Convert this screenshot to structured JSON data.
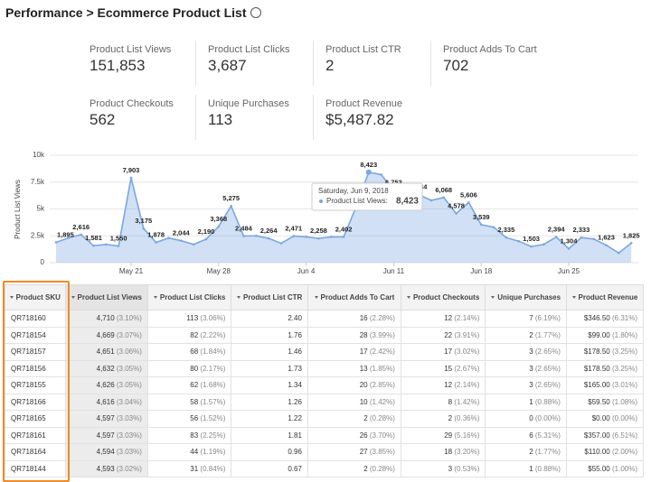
{
  "header": {
    "title": "Performance > Ecommerce Product List"
  },
  "metrics": [
    {
      "label": "Product List Views",
      "value": "151,853"
    },
    {
      "label": "Product List Clicks",
      "value": "3,687"
    },
    {
      "label": "Product List CTR",
      "value": "2"
    },
    {
      "label": "Product Adds To Cart",
      "value": "702"
    },
    {
      "label": "Product Checkouts",
      "value": "562"
    },
    {
      "label": "Unique Purchases",
      "value": "113"
    },
    {
      "label": "Product Revenue",
      "value": "$5,487.82"
    }
  ],
  "chart_data": {
    "type": "area",
    "y_label": "Product List Views",
    "color": "#7aa7e0",
    "x": [
      "May 15",
      "May 16",
      "May 17",
      "May 18",
      "May 19",
      "May 20",
      "May 21",
      "May 22",
      "May 23",
      "May 24",
      "May 25",
      "May 26",
      "May 27",
      "May 28",
      "May 29",
      "May 30",
      "May 31",
      "Jun 1",
      "Jun 2",
      "Jun 3",
      "Jun 4",
      "Jun 5",
      "Jun 6",
      "Jun 7",
      "Jun 8",
      "Jun 9",
      "Jun 10",
      "Jun 11",
      "Jun 12",
      "Jun 13",
      "Jun 14",
      "Jun 15",
      "Jun 16",
      "Jun 17",
      "Jun 18",
      "Jun 19",
      "Jun 20",
      "Jun 21",
      "Jun 22",
      "Jun 23",
      "Jun 24",
      "Jun 25",
      "Jun 26",
      "Jun 27",
      "Jun 28",
      "Jun 29",
      "Jun 30"
    ],
    "values": [
      1895,
      2300,
      2616,
      1581,
      1700,
      1550,
      7903,
      3175,
      1878,
      2300,
      2044,
      1700,
      2190,
      3368,
      5275,
      2484,
      2500,
      2264,
      1800,
      2471,
      2400,
      2258,
      2400,
      2402,
      5200,
      8423,
      8200,
      6753,
      6500,
      6334,
      5800,
      6068,
      4578,
      5606,
      3539,
      3300,
      2335,
      2000,
      1503,
      1700,
      2394,
      1304,
      2333,
      2200,
      1623,
      900,
      1825
    ],
    "value_labels": [
      "1,895",
      null,
      "2,616",
      "1,581",
      null,
      "1,550",
      "7,903",
      "3,175",
      "1,878",
      null,
      "2,044",
      null,
      "2,190",
      "3,368",
      "5,275",
      "2,484",
      null,
      "2,264",
      null,
      "2,471",
      null,
      "2,258",
      null,
      "2,402",
      null,
      "8,423",
      null,
      "6,753",
      null,
      "6,334",
      null,
      "6,068",
      "4,578",
      "5,606",
      "3,539",
      null,
      "2,335",
      null,
      "1,503",
      null,
      "2,394",
      "1,304",
      "2,333",
      null,
      "1,623",
      null,
      "1,825"
    ],
    "xticks": [
      "May 21",
      "May 28",
      "Jun 4",
      "Jun 11",
      "Jun 18",
      "Jun 25"
    ],
    "ylim": [
      0,
      10000
    ],
    "yticks": [
      0,
      {
        "value": 2500,
        "label": "2.5k"
      },
      {
        "value": 5000,
        "label": "5k"
      },
      {
        "value": 7500,
        "label": "7.5k"
      },
      {
        "value": 10000,
        "label": "10k"
      }
    ],
    "grid": true,
    "tooltip": {
      "title": "Saturday, Jun 9, 2018",
      "label": "Product List Views:",
      "index": 25
    }
  },
  "table": {
    "columns": [
      "Product SKU",
      "Product List Views",
      "Product List Clicks",
      "Product List CTR",
      "Product Adds To Cart",
      "Product Checkouts",
      "Unique Purchases",
      "Product Revenue"
    ],
    "rows": [
      [
        "QR718160",
        [
          "4,710",
          "(3.10%)"
        ],
        [
          "113",
          "(3.06%)"
        ],
        [
          "2.40"
        ],
        [
          "16",
          "(2.28%)"
        ],
        [
          "12",
          "(2.14%)"
        ],
        [
          "7",
          "(6.19%)"
        ],
        [
          "$346.50",
          "(6.31%)"
        ]
      ],
      [
        "QR718154",
        [
          "4,669",
          "(3.07%)"
        ],
        [
          "82",
          "(2.22%)"
        ],
        [
          "1.76"
        ],
        [
          "28",
          "(3.99%)"
        ],
        [
          "22",
          "(3.91%)"
        ],
        [
          "2",
          "(1.77%)"
        ],
        [
          "$99.00",
          "(1.80%)"
        ]
      ],
      [
        "QR718157",
        [
          "4,651",
          "(3.06%)"
        ],
        [
          "68",
          "(1.84%)"
        ],
        [
          "1.46"
        ],
        [
          "17",
          "(2.42%)"
        ],
        [
          "17",
          "(3.02%)"
        ],
        [
          "3",
          "(2.65%)"
        ],
        [
          "$178.50",
          "(3.25%)"
        ]
      ],
      [
        "QR718156",
        [
          "4,632",
          "(3.05%)"
        ],
        [
          "80",
          "(2.17%)"
        ],
        [
          "1.73"
        ],
        [
          "13",
          "(1.85%)"
        ],
        [
          "15",
          "(2.67%)"
        ],
        [
          "3",
          "(2.65%)"
        ],
        [
          "$178.50",
          "(3.25%)"
        ]
      ],
      [
        "QR718155",
        [
          "4,626",
          "(3.05%)"
        ],
        [
          "62",
          "(1.68%)"
        ],
        [
          "1.34"
        ],
        [
          "20",
          "(2.85%)"
        ],
        [
          "12",
          "(2.14%)"
        ],
        [
          "3",
          "(2.65%)"
        ],
        [
          "$165.00",
          "(3.01%)"
        ]
      ],
      [
        "QR718166",
        [
          "4,616",
          "(3.04%)"
        ],
        [
          "58",
          "(1.57%)"
        ],
        [
          "1.26"
        ],
        [
          "10",
          "(1.42%)"
        ],
        [
          "8",
          "(1.42%)"
        ],
        [
          "1",
          "(0.88%)"
        ],
        [
          "$59.50",
          "(1.08%)"
        ]
      ],
      [
        "QR718165",
        [
          "4,597",
          "(3.03%)"
        ],
        [
          "56",
          "(1.52%)"
        ],
        [
          "1.22"
        ],
        [
          "2",
          "(0.28%)"
        ],
        [
          "2",
          "(0.36%)"
        ],
        [
          "0",
          "(0.00%)"
        ],
        [
          "$0.00",
          "(0.00%)"
        ]
      ],
      [
        "QR718161",
        [
          "4,597",
          "(3.03%)"
        ],
        [
          "83",
          "(2.25%)"
        ],
        [
          "1.81"
        ],
        [
          "26",
          "(3.70%)"
        ],
        [
          "29",
          "(5.16%)"
        ],
        [
          "6",
          "(5.31%)"
        ],
        [
          "$357.00",
          "(6.51%)"
        ]
      ],
      [
        "QR718164",
        [
          "4,594",
          "(3.03%)"
        ],
        [
          "44",
          "(1.19%)"
        ],
        [
          "0.96"
        ],
        [
          "27",
          "(3.85%)"
        ],
        [
          "18",
          "(3.20%)"
        ],
        [
          "2",
          "(1.77%)"
        ],
        [
          "$110.00",
          "(2.00%)"
        ]
      ],
      [
        "QR718144",
        [
          "4,593",
          "(3.02%)"
        ],
        [
          "31",
          "(0.84%)"
        ],
        [
          "0.67"
        ],
        [
          "2",
          "(0.28%)"
        ],
        [
          "3",
          "(0.53%)"
        ],
        [
          "1",
          "(0.88%)"
        ],
        [
          "$55.00",
          "(1.00%)"
        ]
      ]
    ]
  }
}
